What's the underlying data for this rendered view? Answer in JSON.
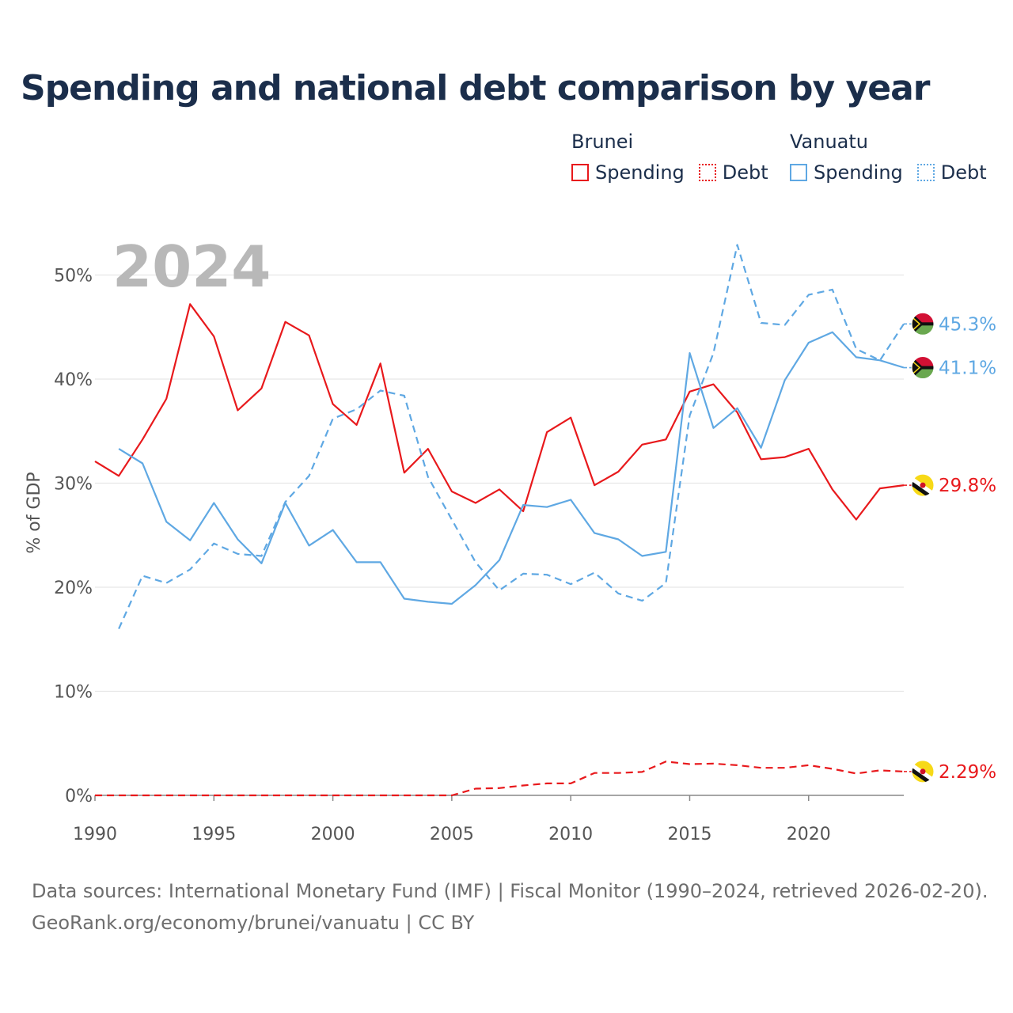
{
  "title": "Spending and national debt comparison by year",
  "legend": {
    "groups": [
      {
        "name": "Brunei",
        "color": "#e8191c",
        "items": [
          {
            "label": "Spending",
            "style": "solid"
          },
          {
            "label": "Debt",
            "style": "dotted"
          }
        ]
      },
      {
        "name": "Vanuatu",
        "color": "#5fa8e3",
        "items": [
          {
            "label": "Spending",
            "style": "solid"
          },
          {
            "label": "Debt",
            "style": "dotted"
          }
        ]
      }
    ]
  },
  "sources": {
    "line1": "Data sources: International Monetary Fund (IMF) | Fiscal Monitor (1990–2024, retrieved 2026-02-20).",
    "line2": "GeoRank.org/economy/brunei/vanuatu | CC BY"
  },
  "chart_data": {
    "type": "line",
    "year_label": "2024",
    "ylabel": "% of GDP",
    "xlim": [
      1990,
      2024
    ],
    "ylim": [
      0,
      55
    ],
    "x_ticks": [
      1990,
      1995,
      2000,
      2005,
      2010,
      2015,
      2020
    ],
    "y_ticks": [
      {
        "value": 0,
        "label": "0%"
      },
      {
        "value": 10,
        "label": "10%"
      },
      {
        "value": 20,
        "label": "20%"
      },
      {
        "value": 30,
        "label": "30%"
      },
      {
        "value": 40,
        "label": "40%"
      },
      {
        "value": 50,
        "label": "50%"
      }
    ],
    "series": [
      {
        "name": "Brunei Spending",
        "country": "Brunei",
        "color": "#e8191c",
        "dash": "solid",
        "end_label": "29.8%",
        "flag": "brunei",
        "x": [
          1990,
          1991,
          1992,
          1993,
          1994,
          1995,
          1996,
          1997,
          1998,
          1999,
          2000,
          2001,
          2002,
          2003,
          2004,
          2005,
          2006,
          2007,
          2008,
          2009,
          2010,
          2011,
          2012,
          2013,
          2014,
          2015,
          2016,
          2017,
          2018,
          2019,
          2020,
          2021,
          2022,
          2023,
          2024
        ],
        "values": [
          32.1,
          30.7,
          34.2,
          38.1,
          47.2,
          44.1,
          37.0,
          39.1,
          45.5,
          44.2,
          37.6,
          35.6,
          41.5,
          31.0,
          33.3,
          29.2,
          28.1,
          29.4,
          27.3,
          34.9,
          36.3,
          29.8,
          31.1,
          33.7,
          34.2,
          38.8,
          39.5,
          36.8,
          32.3,
          32.5,
          33.3,
          29.4,
          26.5,
          29.5,
          29.8
        ]
      },
      {
        "name": "Brunei Debt",
        "country": "Brunei",
        "color": "#e8191c",
        "dash": "dashed",
        "end_label": "2.29%",
        "flag": "brunei",
        "x": [
          1990,
          1991,
          1992,
          1993,
          1994,
          1995,
          1996,
          1997,
          1998,
          1999,
          2000,
          2001,
          2002,
          2003,
          2004,
          2005,
          2006,
          2007,
          2008,
          2009,
          2010,
          2011,
          2012,
          2013,
          2014,
          2015,
          2016,
          2017,
          2018,
          2019,
          2020,
          2021,
          2022,
          2023,
          2024
        ],
        "values": [
          0,
          0,
          0,
          0,
          0,
          0,
          0,
          0,
          0,
          0,
          0,
          0,
          0,
          0,
          0,
          0,
          0.65,
          0.7,
          0.95,
          1.15,
          1.15,
          2.15,
          2.15,
          2.25,
          3.25,
          3.0,
          3.05,
          2.9,
          2.65,
          2.65,
          2.9,
          2.55,
          2.1,
          2.4,
          2.29
        ]
      },
      {
        "name": "Vanuatu Spending",
        "country": "Vanuatu",
        "color": "#5fa8e3",
        "dash": "solid",
        "end_label": "41.1%",
        "flag": "vanuatu",
        "x": [
          1991,
          1992,
          1993,
          1994,
          1995,
          1996,
          1997,
          1998,
          1999,
          2000,
          2001,
          2002,
          2003,
          2004,
          2005,
          2006,
          2007,
          2008,
          2009,
          2010,
          2011,
          2012,
          2013,
          2014,
          2015,
          2016,
          2017,
          2018,
          2019,
          2020,
          2021,
          2022,
          2023,
          2024
        ],
        "values": [
          33.3,
          31.9,
          26.3,
          24.5,
          28.1,
          24.6,
          22.3,
          28.1,
          24.0,
          25.5,
          22.4,
          22.4,
          18.9,
          18.6,
          18.4,
          20.2,
          22.6,
          27.9,
          27.7,
          28.4,
          25.2,
          24.6,
          23.0,
          23.4,
          42.5,
          35.3,
          37.2,
          33.4,
          39.9,
          43.5,
          44.5,
          42.1,
          41.8,
          41.1
        ]
      },
      {
        "name": "Vanuatu Debt",
        "country": "Vanuatu",
        "color": "#5fa8e3",
        "dash": "dashed",
        "end_label": "45.3%",
        "flag": "vanuatu",
        "x": [
          1991,
          1992,
          1993,
          1994,
          1995,
          1996,
          1997,
          1998,
          1999,
          2000,
          2001,
          2002,
          2003,
          2004,
          2005,
          2006,
          2007,
          2008,
          2009,
          2010,
          2011,
          2012,
          2013,
          2014,
          2015,
          2016,
          2017,
          2018,
          2019,
          2020,
          2021,
          2022,
          2023,
          2024
        ],
        "values": [
          16.0,
          21.1,
          20.4,
          21.7,
          24.2,
          23.2,
          23.0,
          28.2,
          30.7,
          36.2,
          37.1,
          38.9,
          38.4,
          30.6,
          26.5,
          22.4,
          19.7,
          21.3,
          21.2,
          20.3,
          21.4,
          19.4,
          18.7,
          20.4,
          36.5,
          42.5,
          52.9,
          45.4,
          45.2,
          48.1,
          48.6,
          42.9,
          41.8,
          45.3
        ]
      }
    ]
  }
}
